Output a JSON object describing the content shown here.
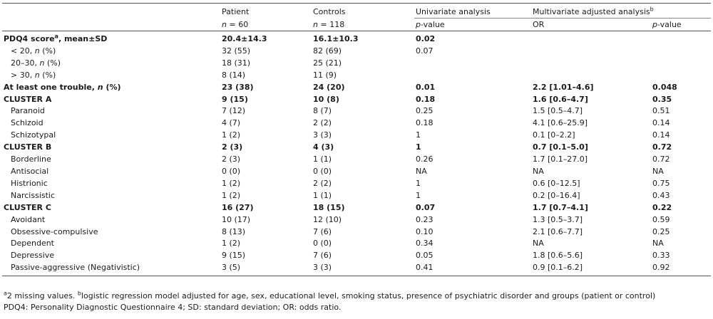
{
  "header": {
    "patient": "Patient",
    "controls": "Controls",
    "n_prefix": "n",
    "patient_n": " = 60",
    "controls_n": " = 118",
    "univariate": "Univariate analysis",
    "multivariate": "Multivariate adjusted analysis",
    "multivariate_sup": "b",
    "p_prefix": "p",
    "p_suffix": "-value",
    "or": "OR"
  },
  "rows": [
    {
      "label": "PDQ4 score",
      "sup": "a",
      "label_suffix": ", mean±SD",
      "indent": false,
      "bold": true,
      "patient": "20.4±14.3",
      "controls": "16.1±10.3",
      "uni_p": "0.02",
      "or": "",
      "multi_p": ""
    },
    {
      "label": "< 20, ",
      "n": "n",
      "label_suffix": " (%)",
      "indent": true,
      "bold": false,
      "patient": "32 (55)",
      "controls": "82 (69)",
      "uni_p": "0.07",
      "or": "",
      "multi_p": ""
    },
    {
      "label": "20–30, ",
      "n": "n",
      "label_suffix": " (%)",
      "indent": true,
      "bold": false,
      "patient": "18 (31)",
      "controls": "25 (21)",
      "uni_p": "",
      "or": "",
      "multi_p": ""
    },
    {
      "label": "> 30, ",
      "n": "n",
      "label_suffix": " (%)",
      "indent": true,
      "bold": false,
      "patient": "8 (14)",
      "controls": "11 (9)",
      "uni_p": "",
      "or": "",
      "multi_p": ""
    },
    {
      "label": "At least one trouble, ",
      "n": "n",
      "label_suffix": " (%)",
      "indent": false,
      "bold": true,
      "patient": "23 (38)",
      "controls": "24 (20)",
      "uni_p": "0.01",
      "or": "2.2 [1.01–4.6]",
      "multi_p": "0.048"
    },
    {
      "label": "CLUSTER A",
      "indent": false,
      "bold": true,
      "patient": "9 (15)",
      "controls": "10 (8)",
      "uni_p": "0.18",
      "or": "1.6 [0.6–4.7]",
      "multi_p": "0.35"
    },
    {
      "label": "Paranoid",
      "indent": true,
      "bold": false,
      "patient": "7 (12)",
      "controls": "8 (7)",
      "uni_p": "0.25",
      "or": "1.5 [0.5–4.7]",
      "multi_p": "0.51"
    },
    {
      "label": "Schizoid",
      "indent": true,
      "bold": false,
      "patient": "4 (7)",
      "controls": "2 (2)",
      "uni_p": "0.18",
      "or": "4.1 [0.6–25.9]",
      "multi_p": "0.14"
    },
    {
      "label": "Schizotypal",
      "indent": true,
      "bold": false,
      "patient": "1 (2)",
      "controls": "3 (3)",
      "uni_p": "1",
      "or": "0.1 [0–2.2]",
      "multi_p": "0.14"
    },
    {
      "label": "CLUSTER B",
      "indent": false,
      "bold": true,
      "patient": "2 (3)",
      "controls": "4 (3)",
      "uni_p": "1",
      "or": "0.7 [0.1–5.0]",
      "multi_p": "0.72"
    },
    {
      "label": "Borderline",
      "indent": true,
      "bold": false,
      "patient": "2 (3)",
      "controls": "1 (1)",
      "uni_p": "0.26",
      "or": "1.7 [0.1–27.0]",
      "multi_p": "0.72"
    },
    {
      "label": "Antisocial",
      "indent": true,
      "bold": false,
      "patient": "0 (0)",
      "controls": "0 (0)",
      "uni_p": "NA",
      "or": "NA",
      "multi_p": "NA"
    },
    {
      "label": "Histrionic",
      "indent": true,
      "bold": false,
      "patient": "1 (2)",
      "controls": "2 (2)",
      "uni_p": "1",
      "or": "0.6 [0–12.5]",
      "multi_p": "0.75"
    },
    {
      "label": "Narcissistic",
      "indent": true,
      "bold": false,
      "patient": "1 (2)",
      "controls": "1 (1)",
      "uni_p": "1",
      "or": "0.2 [0–16.4]",
      "multi_p": "0.43"
    },
    {
      "label": "CLUSTER C",
      "indent": false,
      "bold": true,
      "patient": "16 (27)",
      "controls": "18 (15)",
      "uni_p": "0.07",
      "or": "1.7 [0.7–4.1]",
      "multi_p": "0.22"
    },
    {
      "label": "Avoidant",
      "indent": true,
      "bold": false,
      "patient": "10 (17)",
      "controls": "12 (10)",
      "uni_p": "0.23",
      "or": "1.3 [0.5–3.7]",
      "multi_p": "0.59"
    },
    {
      "label": "Obsessive-compulsive",
      "indent": true,
      "bold": false,
      "patient": "8 (13)",
      "controls": "7 (6)",
      "uni_p": "0.10",
      "or": "2.1 [0.6–7.7]",
      "multi_p": "0.25"
    },
    {
      "label": "Dependent",
      "indent": true,
      "bold": false,
      "patient": "1 (2)",
      "controls": "0 (0)",
      "uni_p": "0.34",
      "or": "NA",
      "multi_p": "NA"
    },
    {
      "label": "Depressive",
      "indent": true,
      "bold": false,
      "patient": "9 (15)",
      "controls": "7 (6)",
      "uni_p": "0.05",
      "or": "1.8 [0.6–5.6]",
      "multi_p": "0.33"
    },
    {
      "label": "Passive-aggressive (Negativistic)",
      "indent": true,
      "bold": false,
      "patient": "3 (5)",
      "controls": "3 (3)",
      "uni_p": "0.41",
      "or": "0.9 [0.1–6.2]",
      "multi_p": "0.92"
    }
  ],
  "footnotes": {
    "a_mark": "a",
    "a_text": "2 missing values. ",
    "b_mark": "b",
    "b_text": "logistic regression model adjusted for age, sex, educational level, smoking status, presence of psychiatric disorder and groups (patient or control)",
    "abbrev": "PDQ4: Personality Diagnostic Questionnaire 4; SD: standard deviation; OR: odds ratio."
  }
}
